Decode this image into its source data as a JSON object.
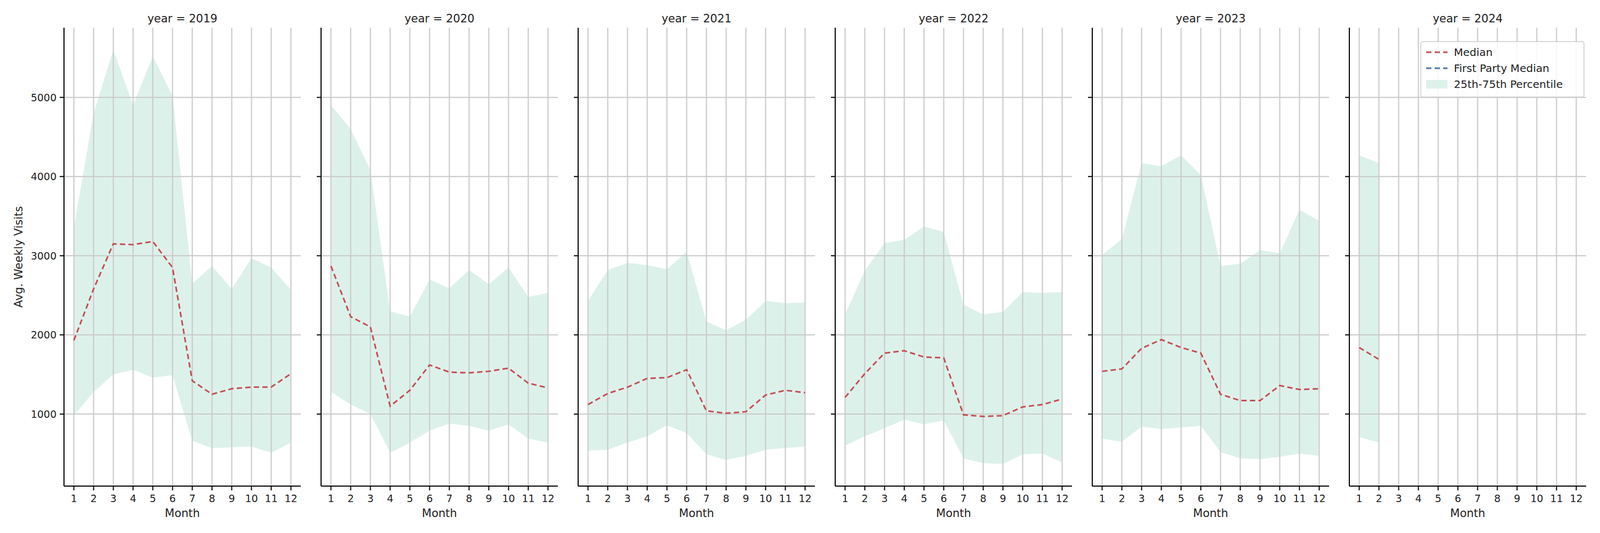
{
  "chart_data": [
    {
      "type": "line",
      "title": "year = 2019",
      "x_label": "Month",
      "y_label": "Avg. Weekly Visits",
      "x": [
        1,
        2,
        3,
        4,
        5,
        6,
        7,
        8,
        9,
        10,
        11,
        12
      ],
      "xlim": [
        0.5,
        12.5
      ],
      "xticks": [
        1,
        2,
        3,
        4,
        5,
        6,
        7,
        8,
        9,
        10,
        11,
        12
      ],
      "ylim": [
        90,
        5880
      ],
      "yticks": [
        1000,
        2000,
        3000,
        4000,
        5000
      ],
      "grid": true,
      "series": [
        {
          "name": "Median",
          "type": "line",
          "color": "#c44e52",
          "line_style": "dashed",
          "values": [
            1930,
            2580,
            3150,
            3140,
            3180,
            2850,
            1420,
            1250,
            1320,
            1340,
            1340,
            1510
          ]
        },
        {
          "name": "First Party Median",
          "type": "line",
          "color": "#4c72b0",
          "line_style": "dashed",
          "values": [
            null,
            null,
            null,
            null,
            null,
            null,
            null,
            null,
            null,
            null,
            null,
            null
          ]
        },
        {
          "name": "25th-75th Percentile",
          "type": "area",
          "color": "#ddf1eb",
          "low": [
            980,
            1280,
            1500,
            1560,
            1460,
            1490,
            660,
            570,
            580,
            590,
            510,
            640
          ],
          "high": [
            3350,
            4800,
            5600,
            4900,
            5520,
            5020,
            2650,
            2870,
            2580,
            2970,
            2850,
            2570
          ]
        }
      ]
    },
    {
      "type": "line",
      "title": "year = 2020",
      "x_label": "Month",
      "tick_labels": "x",
      "x": [
        1,
        2,
        3,
        4,
        5,
        6,
        7,
        8,
        9,
        10,
        11,
        12
      ],
      "xlim": [
        0.5,
        12.5
      ],
      "xticks": [
        1,
        2,
        3,
        4,
        5,
        6,
        7,
        8,
        9,
        10,
        11,
        12
      ],
      "ylim": [
        90,
        5880
      ],
      "yticks": [
        1000,
        2000,
        3000,
        4000,
        5000
      ],
      "grid": true,
      "series": [
        {
          "name": "Median",
          "type": "line",
          "color": "#c44e52",
          "line_style": "dashed",
          "values": [
            2870,
            2230,
            2100,
            1100,
            1300,
            1620,
            1530,
            1520,
            1540,
            1580,
            1390,
            1330
          ]
        },
        {
          "name": "First Party Median",
          "type": "line",
          "color": "#4c72b0",
          "line_style": "dashed",
          "values": [
            null,
            null,
            null,
            null,
            null,
            null,
            null,
            null,
            null,
            null,
            null,
            null
          ]
        },
        {
          "name": "25th-75th Percentile",
          "type": "area",
          "color": "#ddf1eb",
          "low": [
            1280,
            1120,
            1000,
            510,
            640,
            790,
            880,
            850,
            790,
            870,
            690,
            640
          ],
          "high": [
            4900,
            4600,
            4080,
            2300,
            2230,
            2700,
            2590,
            2820,
            2640,
            2850,
            2480,
            2530
          ]
        }
      ]
    },
    {
      "type": "line",
      "title": "year = 2021",
      "x_label": "Month",
      "tick_labels": "x",
      "x": [
        1,
        2,
        3,
        4,
        5,
        6,
        7,
        8,
        9,
        10,
        11,
        12
      ],
      "xlim": [
        0.5,
        12.5
      ],
      "xticks": [
        1,
        2,
        3,
        4,
        5,
        6,
        7,
        8,
        9,
        10,
        11,
        12
      ],
      "ylim": [
        90,
        5880
      ],
      "yticks": [
        1000,
        2000,
        3000,
        4000,
        5000
      ],
      "grid": true,
      "series": [
        {
          "name": "Median",
          "type": "line",
          "color": "#c44e52",
          "line_style": "dashed",
          "values": [
            1120,
            1260,
            1340,
            1450,
            1460,
            1560,
            1040,
            1010,
            1030,
            1240,
            1300,
            1270
          ]
        },
        {
          "name": "First Party Median",
          "type": "line",
          "color": "#4c72b0",
          "line_style": "dashed",
          "values": [
            null,
            null,
            null,
            null,
            null,
            null,
            null,
            null,
            null,
            null,
            null,
            null
          ]
        },
        {
          "name": "25th-75th Percentile",
          "type": "area",
          "color": "#ddf1eb",
          "low": [
            540,
            550,
            640,
            720,
            860,
            760,
            490,
            420,
            470,
            550,
            570,
            590
          ],
          "high": [
            2430,
            2820,
            2910,
            2880,
            2830,
            3050,
            2170,
            2060,
            2190,
            2430,
            2400,
            2410
          ]
        }
      ]
    },
    {
      "type": "line",
      "title": "year = 2022",
      "x_label": "Month",
      "tick_labels": "x",
      "x": [
        1,
        2,
        3,
        4,
        5,
        6,
        7,
        8,
        9,
        10,
        11,
        12
      ],
      "xlim": [
        0.5,
        12.5
      ],
      "xticks": [
        1,
        2,
        3,
        4,
        5,
        6,
        7,
        8,
        9,
        10,
        11,
        12
      ],
      "ylim": [
        90,
        5880
      ],
      "yticks": [
        1000,
        2000,
        3000,
        4000,
        5000
      ],
      "grid": true,
      "series": [
        {
          "name": "Median",
          "type": "line",
          "color": "#c44e52",
          "line_style": "dashed",
          "values": [
            1210,
            1510,
            1770,
            1800,
            1720,
            1710,
            990,
            970,
            980,
            1090,
            1120,
            1190
          ]
        },
        {
          "name": "First Party Median",
          "type": "line",
          "color": "#4c72b0",
          "line_style": "dashed",
          "values": [
            null,
            null,
            null,
            null,
            null,
            null,
            null,
            null,
            null,
            null,
            null,
            null
          ]
        },
        {
          "name": "25th-75th Percentile",
          "type": "area",
          "color": "#ddf1eb",
          "low": [
            600,
            720,
            820,
            930,
            870,
            920,
            440,
            380,
            370,
            490,
            500,
            390
          ],
          "high": [
            2260,
            2810,
            3160,
            3200,
            3370,
            3300,
            2380,
            2260,
            2290,
            2540,
            2530,
            2540
          ]
        }
      ]
    },
    {
      "type": "line",
      "title": "year = 2023",
      "x_label": "Month",
      "tick_labels": "x",
      "x": [
        1,
        2,
        3,
        4,
        5,
        6,
        7,
        8,
        9,
        10,
        11,
        12
      ],
      "xlim": [
        0.5,
        12.5
      ],
      "xticks": [
        1,
        2,
        3,
        4,
        5,
        6,
        7,
        8,
        9,
        10,
        11,
        12
      ],
      "ylim": [
        90,
        5880
      ],
      "yticks": [
        1000,
        2000,
        3000,
        4000,
        5000
      ],
      "grid": true,
      "series": [
        {
          "name": "Median",
          "type": "line",
          "color": "#c44e52",
          "line_style": "dashed",
          "values": [
            1540,
            1570,
            1830,
            1940,
            1840,
            1770,
            1250,
            1170,
            1170,
            1360,
            1310,
            1320
          ]
        },
        {
          "name": "First Party Median",
          "type": "line",
          "color": "#4c72b0",
          "line_style": "dashed",
          "values": [
            null,
            null,
            null,
            null,
            null,
            null,
            null,
            null,
            null,
            null,
            null,
            null
          ]
        },
        {
          "name": "25th-75th Percentile",
          "type": "area",
          "color": "#ddf1eb",
          "low": [
            690,
            650,
            840,
            810,
            830,
            850,
            520,
            440,
            430,
            460,
            500,
            470
          ],
          "high": [
            3010,
            3210,
            4170,
            4130,
            4270,
            4020,
            2870,
            2900,
            3070,
            3030,
            3580,
            3440
          ]
        }
      ]
    },
    {
      "type": "line",
      "title": "year = 2024",
      "x_label": "Month",
      "tick_labels": "x",
      "legend": "upper right",
      "x": [
        1,
        2,
        3,
        4,
        5,
        6,
        7,
        8,
        9,
        10,
        11,
        12
      ],
      "xlim": [
        0.5,
        12.5
      ],
      "xticks": [
        1,
        2,
        3,
        4,
        5,
        6,
        7,
        8,
        9,
        10,
        11,
        12
      ],
      "ylim": [
        90,
        5880
      ],
      "yticks": [
        1000,
        2000,
        3000,
        4000,
        5000
      ],
      "grid": true,
      "series": [
        {
          "name": "Median",
          "type": "line",
          "color": "#c44e52",
          "line_style": "dashed",
          "values": [
            1840,
            1690,
            null,
            null,
            null,
            null,
            null,
            null,
            null,
            null,
            null,
            null
          ]
        },
        {
          "name": "First Party Median",
          "type": "line",
          "color": "#4c72b0",
          "line_style": "dashed",
          "values": [
            null,
            null,
            null,
            null,
            null,
            null,
            null,
            null,
            null,
            null,
            null,
            null
          ]
        },
        {
          "name": "25th-75th Percentile",
          "type": "area",
          "color": "#ddf1eb",
          "low": [
            710,
            640,
            null,
            null,
            null,
            null,
            null,
            null,
            null,
            null,
            null,
            null
          ],
          "high": [
            4270,
            4170,
            null,
            null,
            null,
            null,
            null,
            null,
            null,
            null,
            null,
            null
          ]
        }
      ]
    }
  ]
}
